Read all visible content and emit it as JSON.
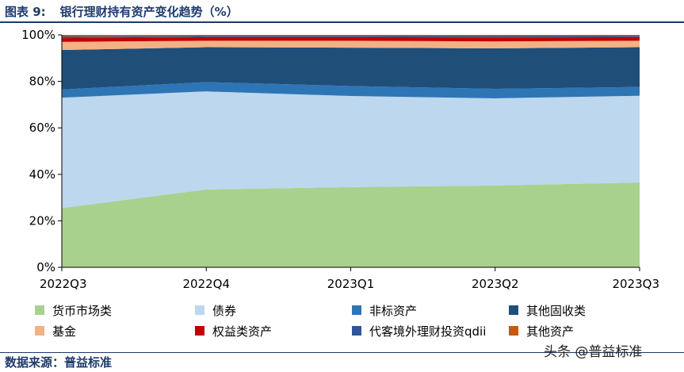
{
  "figure": {
    "label": "图表 9:",
    "title": "银行理财持有资产变化趋势（%）"
  },
  "source": "数据来源：普益标准",
  "watermark": "头条 @普益标准",
  "colors": {
    "title_blue": "#1f3a6e"
  },
  "chart_data": {
    "type": "area",
    "stacked": true,
    "categories": [
      "2022Q3",
      "2022Q4",
      "2023Q1",
      "2023Q2",
      "2023Q3"
    ],
    "ylim": [
      0,
      100
    ],
    "yticks": [
      "0%",
      "20%",
      "40%",
      "60%",
      "80%",
      "100%"
    ],
    "grid": false,
    "legend_position": "bottom",
    "series": [
      {
        "name": "货币市场类",
        "color": "#a9d18e",
        "values": [
          25.5,
          33.5,
          34.5,
          35.2,
          36.5
        ]
      },
      {
        "name": "债券",
        "color": "#bdd7ee",
        "values": [
          47.5,
          42.2,
          39.2,
          37.5,
          37.3
        ]
      },
      {
        "name": "非标资产",
        "color": "#2e75b6",
        "values": [
          3.5,
          4.0,
          4.3,
          4.1,
          3.8
        ]
      },
      {
        "name": "其他固收类",
        "color": "#1f4e79",
        "values": [
          17.0,
          15.0,
          16.5,
          17.4,
          17.1
        ]
      },
      {
        "name": "基金",
        "color": "#f4b183",
        "values": [
          3.5,
          2.8,
          3.0,
          3.0,
          2.8
        ]
      },
      {
        "name": "权益类资产",
        "color": "#c00000",
        "values": [
          1.6,
          1.5,
          1.5,
          1.7,
          1.5
        ]
      },
      {
        "name": "代客境外理财投资qdii",
        "color": "#2f5597",
        "values": [
          0.7,
          0.5,
          0.5,
          0.6,
          0.5
        ]
      },
      {
        "name": "其他资产",
        "color": "#c55a11",
        "values": [
          0.7,
          0.5,
          0.5,
          0.5,
          0.5
        ]
      }
    ]
  }
}
